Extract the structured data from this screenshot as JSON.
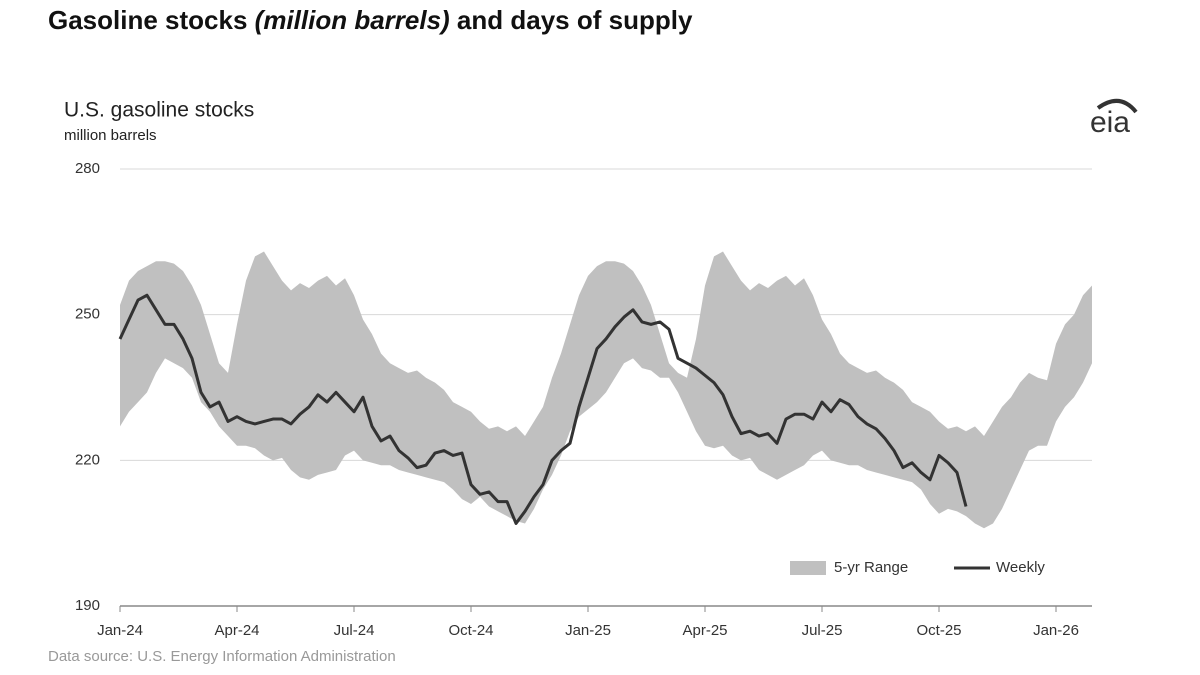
{
  "chart_data": {
    "type": "range-line",
    "title": [
      "Gasoline stocks ",
      "(million barrels)",
      " and days of supply"
    ],
    "subtitle": "U.S. gasoline stocks",
    "y_label": "million barrels",
    "logo": "eia",
    "source": "Data source: U.S. Energy Information Administration",
    "categories": [
      "Jan-24",
      null,
      null,
      null,
      null,
      null,
      null,
      null,
      null,
      null,
      null,
      null,
      null,
      "Apr-24",
      null,
      null,
      null,
      null,
      null,
      null,
      null,
      null,
      null,
      null,
      null,
      null,
      "Jul-24",
      null,
      null,
      null,
      null,
      null,
      null,
      null,
      null,
      null,
      null,
      null,
      null,
      "Oct-24",
      null,
      null,
      null,
      null,
      null,
      null,
      null,
      null,
      null,
      null,
      null,
      null,
      "Jan-25",
      null,
      null,
      null,
      null,
      null,
      null,
      null,
      null,
      null,
      null,
      null,
      null,
      "Apr-25",
      null,
      null,
      null,
      null,
      null,
      null,
      null,
      null,
      null,
      null,
      null,
      null,
      "Jul-25",
      null,
      null,
      null,
      null,
      null,
      null,
      null,
      null,
      null,
      null,
      null,
      null,
      "Oct-25",
      null,
      null,
      null,
      null,
      null,
      null,
      null,
      null,
      null,
      null,
      null,
      null,
      "Jan-26",
      null,
      null,
      null,
      null
    ],
    "series": [
      {
        "name": "5-yr Range",
        "color": "#c0c0c0",
        "high": [
          252,
          257,
          259,
          260,
          261,
          261,
          260.5,
          259,
          256,
          252,
          246,
          240,
          238,
          248,
          257,
          262,
          263,
          260,
          257,
          255,
          256.5,
          255.5,
          257,
          258,
          256,
          257.5,
          254,
          249,
          246,
          242,
          240,
          239,
          238,
          238.5,
          237,
          236,
          234.5,
          232,
          231,
          230,
          228,
          226.5,
          227,
          226,
          227,
          225,
          228,
          231,
          237,
          242,
          248,
          254,
          258,
          260,
          261,
          261,
          260.5,
          259,
          256,
          252,
          246,
          240,
          238,
          237,
          245,
          256,
          262,
          263,
          260,
          257,
          255,
          256.5,
          255.5,
          257,
          258,
          256,
          257.5,
          254,
          249,
          246,
          242,
          240,
          239,
          238,
          238.5,
          237,
          236,
          234.5,
          232,
          231,
          230,
          228,
          226.5,
          227,
          226,
          227,
          225,
          228,
          231,
          233,
          236,
          238,
          237,
          236.5,
          244,
          248,
          250,
          254,
          256
        ],
        "low": [
          227,
          230,
          232,
          234,
          238,
          241,
          240,
          239,
          237,
          232,
          230,
          227,
          225,
          223,
          223,
          222.5,
          221,
          220,
          220.5,
          218,
          216.5,
          216,
          217,
          217.5,
          218,
          221,
          222,
          220,
          219.5,
          219,
          219,
          218,
          217.5,
          217,
          216.5,
          216,
          215.5,
          214,
          212,
          211,
          212.5,
          210.5,
          209.5,
          208.5,
          207.5,
          207,
          210,
          214,
          217,
          221,
          226,
          229,
          230.5,
          232,
          234,
          237,
          240,
          241,
          239,
          238.5,
          237,
          237,
          234,
          230,
          226,
          223,
          222.5,
          223,
          221,
          220,
          220.5,
          218,
          217,
          216,
          217,
          218,
          219,
          221,
          222,
          220,
          219.5,
          219,
          219,
          218,
          217.5,
          217,
          216.5,
          216,
          215.5,
          214,
          211,
          209,
          210,
          209.5,
          208.5,
          207,
          206,
          207,
          210,
          214,
          218,
          222,
          223,
          223,
          228,
          231,
          233,
          236,
          240
        ]
      },
      {
        "name": "Weekly",
        "color": "#333333",
        "values": [
          245,
          249,
          253,
          254,
          251,
          248,
          248,
          245,
          241,
          234,
          231,
          232,
          228,
          229,
          228,
          227.5,
          228,
          228.5,
          228.5,
          227.5,
          229.5,
          231,
          233.5,
          232,
          234,
          232,
          230,
          233,
          227,
          224,
          225,
          222,
          220.5,
          218.5,
          219,
          221.5,
          222,
          221,
          221.5,
          215,
          213,
          213.5,
          211.5,
          211.5,
          207,
          209.5,
          212.5,
          215,
          220,
          222,
          223.5,
          231,
          237,
          243,
          245,
          247.5,
          249.5,
          251,
          248.5,
          248,
          248.5,
          247,
          241,
          240,
          239,
          237.5,
          236,
          233.5,
          229,
          225.5,
          226,
          225,
          225.5,
          223.5,
          228.5,
          229.5,
          229.5,
          228.5,
          232,
          230,
          232.5,
          231.5,
          229,
          227.5,
          226.5,
          224.5,
          222,
          218.5,
          219.5,
          217.5,
          216,
          221,
          219.5,
          217.5,
          210.5,
          null,
          null,
          null,
          null,
          null,
          null,
          null,
          null,
          null,
          null,
          null,
          null,
          null,
          null
        ]
      }
    ],
    "ylim": [
      190,
      280
    ],
    "yticks": [
      190,
      220,
      250,
      280
    ],
    "grid": true,
    "legend": "lower right"
  }
}
